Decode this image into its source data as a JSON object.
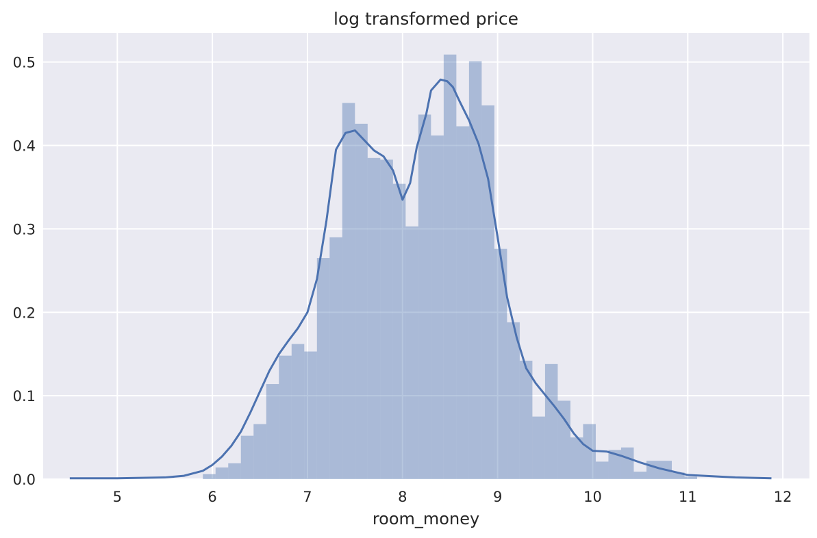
{
  "chart_data": {
    "type": "bar",
    "title": "log transformed price",
    "xlabel": "room_money",
    "ylabel": "",
    "xlim": [
      4.22,
      12.28
    ],
    "ylim": [
      0,
      0.535
    ],
    "x_ticks": [
      "5",
      "6",
      "7",
      "8",
      "9",
      "10",
      "11",
      "12"
    ],
    "y_ticks": [
      "0.0",
      "0.1",
      "0.2",
      "0.3",
      "0.4",
      "0.5"
    ],
    "grid": true,
    "background_color": "#EAEAF2",
    "grid_color": "#FFFFFF",
    "bar_color": "#4C72B0",
    "bar_opacity": 0.4,
    "line_color": "#4C72B0",
    "histogram": {
      "bin_start": 5.9,
      "bin_width": 0.1333,
      "values": [
        0.006,
        0.014,
        0.019,
        0.052,
        0.066,
        0.114,
        0.148,
        0.162,
        0.153,
        0.265,
        0.29,
        0.451,
        0.426,
        0.385,
        0.383,
        0.354,
        0.303,
        0.437,
        0.412,
        0.509,
        0.423,
        0.501,
        0.448,
        0.276,
        0.188,
        0.142,
        0.075,
        0.138,
        0.094,
        0.05,
        0.066,
        0.021,
        0.035,
        0.038,
        0.009,
        0.022,
        0.022,
        0.008,
        0.003
      ]
    },
    "kde": {
      "x": [
        4.5,
        5.0,
        5.5,
        5.7,
        5.9,
        6.0,
        6.1,
        6.2,
        6.3,
        6.4,
        6.5,
        6.6,
        6.7,
        6.8,
        6.9,
        7.0,
        7.1,
        7.2,
        7.3,
        7.4,
        7.5,
        7.6,
        7.7,
        7.8,
        7.9,
        8.0,
        8.08,
        8.15,
        8.25,
        8.3,
        8.4,
        8.47,
        8.53,
        8.6,
        8.7,
        8.8,
        8.9,
        9.0,
        9.1,
        9.2,
        9.3,
        9.4,
        9.5,
        9.6,
        9.7,
        9.8,
        9.9,
        10.0,
        10.15,
        10.3,
        10.5,
        10.7,
        11.0,
        11.5,
        11.88
      ],
      "y": [
        0.001,
        0.001,
        0.002,
        0.004,
        0.01,
        0.017,
        0.027,
        0.04,
        0.057,
        0.08,
        0.105,
        0.13,
        0.15,
        0.166,
        0.181,
        0.2,
        0.24,
        0.31,
        0.395,
        0.415,
        0.418,
        0.406,
        0.394,
        0.387,
        0.37,
        0.335,
        0.355,
        0.398,
        0.438,
        0.466,
        0.479,
        0.477,
        0.47,
        0.453,
        0.43,
        0.402,
        0.36,
        0.29,
        0.218,
        0.17,
        0.133,
        0.115,
        0.101,
        0.087,
        0.072,
        0.055,
        0.042,
        0.034,
        0.033,
        0.028,
        0.02,
        0.013,
        0.005,
        0.002,
        0.001
      ]
    }
  }
}
